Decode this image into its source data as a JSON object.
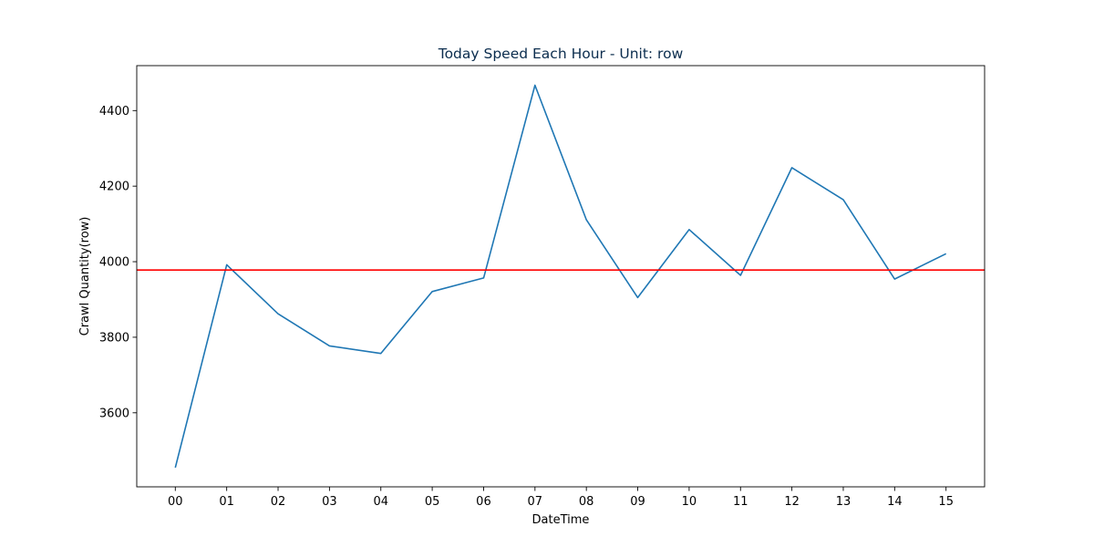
{
  "chart_data": {
    "type": "line",
    "title": "Today Speed Each Hour - Unit: row",
    "xlabel": "DateTime",
    "ylabel": "Crawl Quantity(row)",
    "categories": [
      "00",
      "01",
      "02",
      "03",
      "04",
      "05",
      "06",
      "07",
      "08",
      "09",
      "10",
      "11",
      "12",
      "13",
      "14",
      "15"
    ],
    "series": [
      {
        "values": [
          3455,
          3992,
          3862,
          3777,
          3757,
          3921,
          3957,
          4467,
          4111,
          3905,
          4085,
          3964,
          4249,
          4164,
          3954,
          4021
        ]
      }
    ],
    "reference_line": {
      "value": 3978,
      "color": "#ff0000"
    },
    "yticks": [
      3600,
      3800,
      4000,
      4200,
      4400
    ],
    "ylim": [
      3404,
      4519
    ],
    "grid": false,
    "colors": {
      "series": "#1f77b4",
      "reference": "#ff0000",
      "title": "#0b2d4e"
    }
  }
}
